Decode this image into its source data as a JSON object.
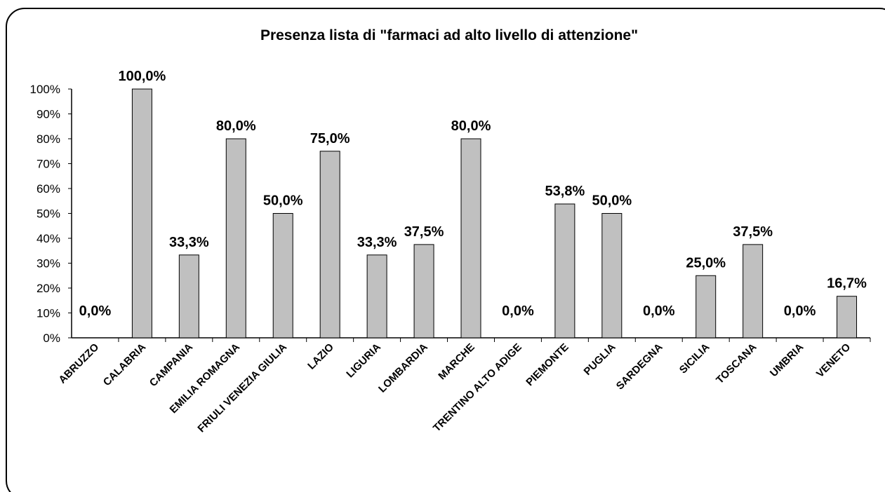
{
  "chart_data": {
    "type": "bar",
    "title": "Presenza lista di \"farmaci ad alto livello di attenzione\"",
    "categories": [
      "ABRUZZO",
      "CALABRIA",
      "CAMPANIA",
      "EMILIA ROMAGNA",
      "FRIULI VENEZIA GIULIA",
      "LAZIO",
      "LIGURIA",
      "LOMBARDIA",
      "MARCHE",
      "TRENTINO ALTO ADIGE",
      "PIEMONTE",
      "PUGLIA",
      "SARDEGNA",
      "SICILIA",
      "TOSCANA",
      "UMBRIA",
      "VENETO"
    ],
    "values": [
      0,
      100,
      33.3,
      80,
      50,
      75,
      33.3,
      37.5,
      80,
      0,
      53.8,
      50,
      0,
      25,
      37.5,
      0,
      16.7
    ],
    "value_labels": [
      "0,0%",
      "100,0%",
      "33,3%",
      "80,0%",
      "50,0%",
      "75,0%",
      "33,3%",
      "37,5%",
      "80,0%",
      "0,0%",
      "53,8%",
      "50,0%",
      "0,0%",
      "25,0%",
      "37,5%",
      "0,0%",
      "16,7%"
    ],
    "color": "#c0c0c0",
    "ylim": [
      0,
      100
    ],
    "yticks": [
      {
        "value": 0,
        "label": "0%"
      },
      {
        "value": 10,
        "label": "10%"
      },
      {
        "value": 20,
        "label": "20%"
      },
      {
        "value": 30,
        "label": "30%"
      },
      {
        "value": 40,
        "label": "40%"
      },
      {
        "value": 50,
        "label": "50%"
      },
      {
        "value": 60,
        "label": "60%"
      },
      {
        "value": 70,
        "label": "70%"
      },
      {
        "value": 80,
        "label": "80%"
      },
      {
        "value": 90,
        "label": "90%"
      },
      {
        "value": 100,
        "label": "100%"
      }
    ],
    "grid": false
  }
}
